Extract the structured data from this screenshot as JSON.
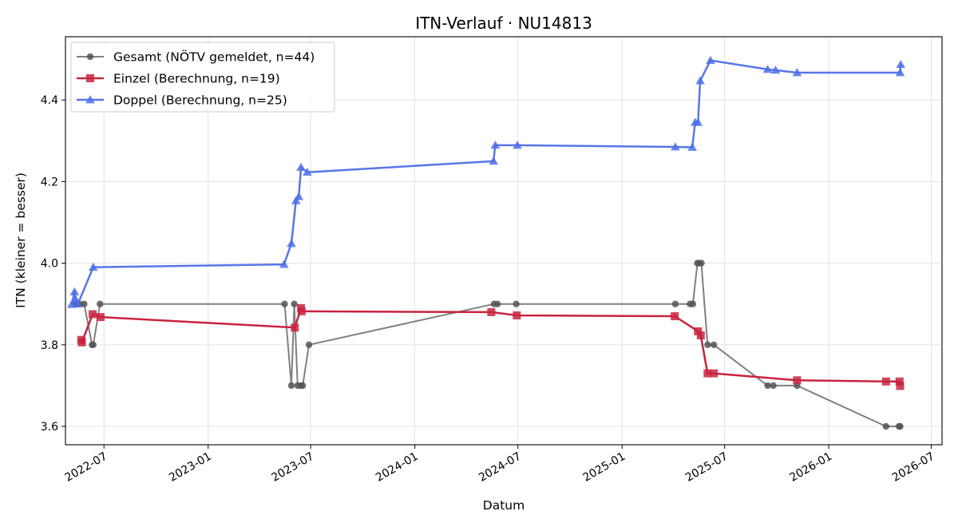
{
  "chart_data": {
    "type": "line",
    "title": "ITN-Verlauf · NU14813",
    "xlabel": "Datum",
    "ylabel": "ITN  (kleiner = besser)",
    "x_axis_type": "date",
    "xlim": [
      "2022-04-24",
      "2026-07-20"
    ],
    "ylim": [
      3.555,
      4.555
    ],
    "x_ticks": [
      "2022-07-01",
      "2023-01-01",
      "2023-07-01",
      "2024-01-01",
      "2024-07-01",
      "2025-01-01",
      "2025-07-01",
      "2026-01-01",
      "2026-07-01"
    ],
    "x_tick_labels": [
      "2022-07",
      "2023-01",
      "2023-07",
      "2024-01",
      "2024-07",
      "2025-01",
      "2025-07",
      "2026-01",
      "2026-07"
    ],
    "y_ticks": [
      3.6,
      3.8,
      4.0,
      4.2,
      4.4
    ],
    "y_tick_labels": [
      "3.6",
      "3.8",
      "4.0",
      "4.2",
      "4.4"
    ],
    "grid": true,
    "legend_position": "top-left",
    "series": [
      {
        "name": "Gesamt (NÖTV gemeldet, n=44)",
        "color": "#555555",
        "marker": "circle",
        "points": [
          [
            "2022-05-11",
            3.9
          ],
          [
            "2022-05-14",
            3.9
          ],
          [
            "2022-05-19",
            3.9
          ],
          [
            "2022-05-27",
            3.9
          ],
          [
            "2022-06-10",
            3.8
          ],
          [
            "2022-06-12",
            3.8
          ],
          [
            "2022-06-24",
            3.9
          ],
          [
            "2023-05-16",
            3.9
          ],
          [
            "2023-05-28",
            3.7
          ],
          [
            "2023-06-02",
            3.9
          ],
          [
            "2023-06-08",
            3.7
          ],
          [
            "2023-06-14",
            3.7
          ],
          [
            "2023-06-17",
            3.7
          ],
          [
            "2023-06-28",
            3.8
          ],
          [
            "2024-05-20",
            3.9
          ],
          [
            "2024-05-26",
            3.9
          ],
          [
            "2024-06-28",
            3.9
          ],
          [
            "2025-04-05",
            3.9
          ],
          [
            "2025-05-01",
            3.9
          ],
          [
            "2025-05-06",
            3.9
          ],
          [
            "2025-05-14",
            4.0
          ],
          [
            "2025-05-17",
            4.0
          ],
          [
            "2025-05-21",
            4.0
          ],
          [
            "2025-06-01",
            3.8
          ],
          [
            "2025-06-12",
            3.8
          ],
          [
            "2025-09-15",
            3.7
          ],
          [
            "2025-09-25",
            3.7
          ],
          [
            "2025-11-06",
            3.7
          ],
          [
            "2026-04-12",
            3.6
          ],
          [
            "2026-05-05",
            3.6
          ],
          [
            "2026-05-07",
            3.6
          ]
        ]
      },
      {
        "name": "Einzel (Berechnung, n=19)",
        "color": "#c8233f",
        "marker": "square",
        "points": [
          [
            "2022-05-22",
            3.812
          ],
          [
            "2022-05-23",
            3.806
          ],
          [
            "2022-06-11",
            3.875
          ],
          [
            "2022-06-25",
            3.868
          ],
          [
            "2023-06-03",
            3.842
          ],
          [
            "2023-06-14",
            3.89
          ],
          [
            "2023-06-15",
            3.882
          ],
          [
            "2024-05-15",
            3.88
          ],
          [
            "2024-06-29",
            3.872
          ],
          [
            "2025-04-04",
            3.87
          ],
          [
            "2025-05-15",
            3.833
          ],
          [
            "2025-05-20",
            3.823
          ],
          [
            "2025-06-01",
            3.73
          ],
          [
            "2025-06-12",
            3.73
          ],
          [
            "2025-11-06",
            3.713
          ],
          [
            "2026-04-12",
            3.71
          ],
          [
            "2026-05-06",
            3.71
          ],
          [
            "2026-05-07",
            3.699
          ]
        ]
      },
      {
        "name": "Doppel (Berechnung, n=25)",
        "color": "#4f6fe8",
        "marker": "triangle",
        "points": [
          [
            "2022-05-05",
            3.899
          ],
          [
            "2022-05-10",
            3.93
          ],
          [
            "2022-05-12",
            3.911
          ],
          [
            "2022-05-16",
            3.9
          ],
          [
            "2022-06-12",
            3.99
          ],
          [
            "2023-05-15",
            3.997
          ],
          [
            "2023-05-28",
            4.048
          ],
          [
            "2023-06-05",
            4.153
          ],
          [
            "2023-06-10",
            4.163
          ],
          [
            "2023-06-14",
            4.235
          ],
          [
            "2023-06-25",
            4.223
          ],
          [
            "2024-05-19",
            4.25
          ],
          [
            "2024-05-22",
            4.289
          ],
          [
            "2024-06-30",
            4.289
          ],
          [
            "2025-04-05",
            4.285
          ],
          [
            "2025-05-05",
            4.284
          ],
          [
            "2025-05-10",
            4.345
          ],
          [
            "2025-05-15",
            4.345
          ],
          [
            "2025-05-19",
            4.447
          ],
          [
            "2025-06-06",
            4.497
          ],
          [
            "2025-09-15",
            4.475
          ],
          [
            "2025-09-29",
            4.473
          ],
          [
            "2025-11-06",
            4.467
          ],
          [
            "2026-05-07",
            4.467
          ],
          [
            "2026-05-08",
            4.487
          ]
        ]
      }
    ]
  }
}
